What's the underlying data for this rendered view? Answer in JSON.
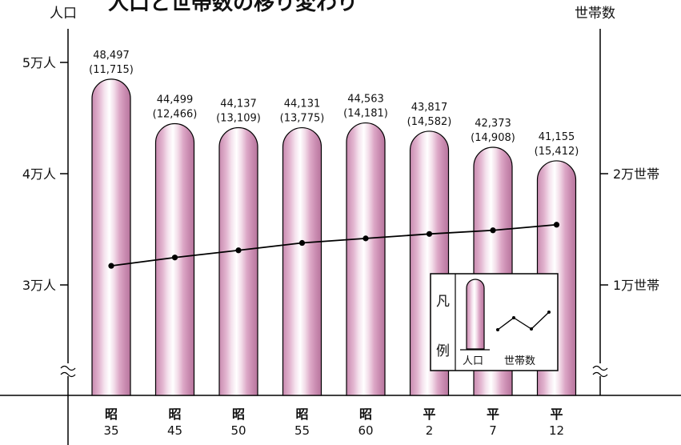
{
  "header": {
    "title_partial": "人口と世帯数の移り変わり"
  },
  "chart_data": {
    "type": "bar",
    "left_axis_title": "人口",
    "right_axis_title": "世帯数",
    "left_ticks": [
      "5万人",
      "4万人",
      "3万人"
    ],
    "right_ticks": [
      "2万世帯",
      "1万世帯"
    ],
    "categories": [
      {
        "era": "昭",
        "year": "35"
      },
      {
        "era": "昭",
        "year": "45"
      },
      {
        "era": "昭",
        "year": "50"
      },
      {
        "era": "昭",
        "year": "55"
      },
      {
        "era": "昭",
        "year": "60"
      },
      {
        "era": "平",
        "year": "2"
      },
      {
        "era": "平",
        "year": "7"
      },
      {
        "era": "平",
        "year": "12"
      }
    ],
    "series": [
      {
        "name": "人口",
        "kind": "bar",
        "values": [
          48497,
          44499,
          44137,
          44131,
          44563,
          43817,
          42373,
          41155
        ],
        "labels": [
          "48,497",
          "44,499",
          "44,137",
          "44,131",
          "44,563",
          "43,817",
          "42,373",
          "41,155"
        ]
      },
      {
        "name": "世帯数",
        "kind": "line",
        "values": [
          11715,
          12466,
          13109,
          13775,
          14181,
          14582,
          14908,
          15412
        ],
        "labels": [
          "(11,715)",
          "(12,466)",
          "(13,109)",
          "(13,775)",
          "(14,181)",
          "(14,582)",
          "(14,908)",
          "(15,412)"
        ]
      }
    ],
    "left_ylim": [
      30000,
      50000
    ],
    "right_ylim": [
      10000,
      20000
    ],
    "axis_break": true,
    "grid": false,
    "legend": {
      "placement": "bottom-right",
      "title_top": "凡",
      "title_bottom": "例",
      "bar_label": "人口",
      "line_label": "世帯数"
    },
    "colors": {
      "bar_dark": "#c98bb0",
      "bar_mid": "#e9c3da",
      "bar_light": "#ffffff",
      "line": "#000000",
      "axis": "#000000"
    }
  }
}
